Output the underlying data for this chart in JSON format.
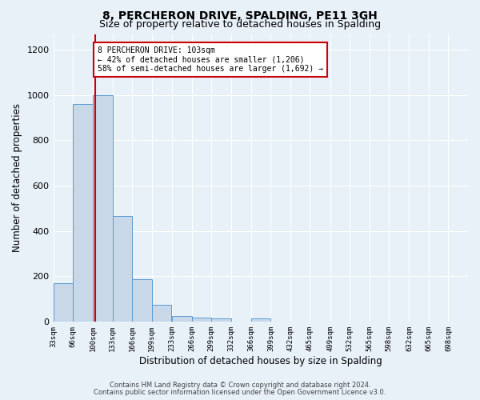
{
  "title": "8, PERCHERON DRIVE, SPALDING, PE11 3GH",
  "subtitle": "Size of property relative to detached houses in Spalding",
  "xlabel": "Distribution of detached houses by size in Spalding",
  "ylabel": "Number of detached properties",
  "bar_left_edges": [
    33,
    66,
    100,
    133,
    166,
    199,
    233,
    266,
    299,
    332,
    366,
    399,
    432,
    465,
    499,
    532,
    565,
    598,
    632,
    665
  ],
  "bar_heights": [
    170,
    960,
    1000,
    465,
    185,
    75,
    25,
    18,
    15,
    0,
    12,
    0,
    0,
    0,
    0,
    0,
    0,
    0,
    0,
    0
  ],
  "bin_width": 33,
  "bar_color": "#c8d8e8",
  "bar_edge_color": "#5b9bd5",
  "property_line_x": 103,
  "property_line_color": "#cc0000",
  "ylim": [
    0,
    1270
  ],
  "yticks": [
    0,
    200,
    400,
    600,
    800,
    1000,
    1200
  ],
  "xtick_labels": [
    "33sqm",
    "66sqm",
    "100sqm",
    "133sqm",
    "166sqm",
    "199sqm",
    "233sqm",
    "266sqm",
    "299sqm",
    "332sqm",
    "366sqm",
    "399sqm",
    "432sqm",
    "465sqm",
    "499sqm",
    "532sqm",
    "565sqm",
    "598sqm",
    "632sqm",
    "665sqm",
    "698sqm"
  ],
  "xtick_positions": [
    33,
    66,
    100,
    133,
    166,
    199,
    233,
    266,
    299,
    332,
    366,
    399,
    432,
    465,
    499,
    532,
    565,
    598,
    632,
    665,
    698
  ],
  "annotation_title": "8 PERCHERON DRIVE: 103sqm",
  "annotation_line1": "← 42% of detached houses are smaller (1,206)",
  "annotation_line2": "58% of semi-detached houses are larger (1,692) →",
  "annotation_box_color": "#ffffff",
  "annotation_box_edge": "#cc0000",
  "footnote1": "Contains HM Land Registry data © Crown copyright and database right 2024.",
  "footnote2": "Contains public sector information licensed under the Open Government Licence v3.0.",
  "background_color": "#e8f0f8",
  "plot_bg_color": "#e8f0f8",
  "grid_color": "#ffffff",
  "title_fontsize": 10,
  "subtitle_fontsize": 9
}
